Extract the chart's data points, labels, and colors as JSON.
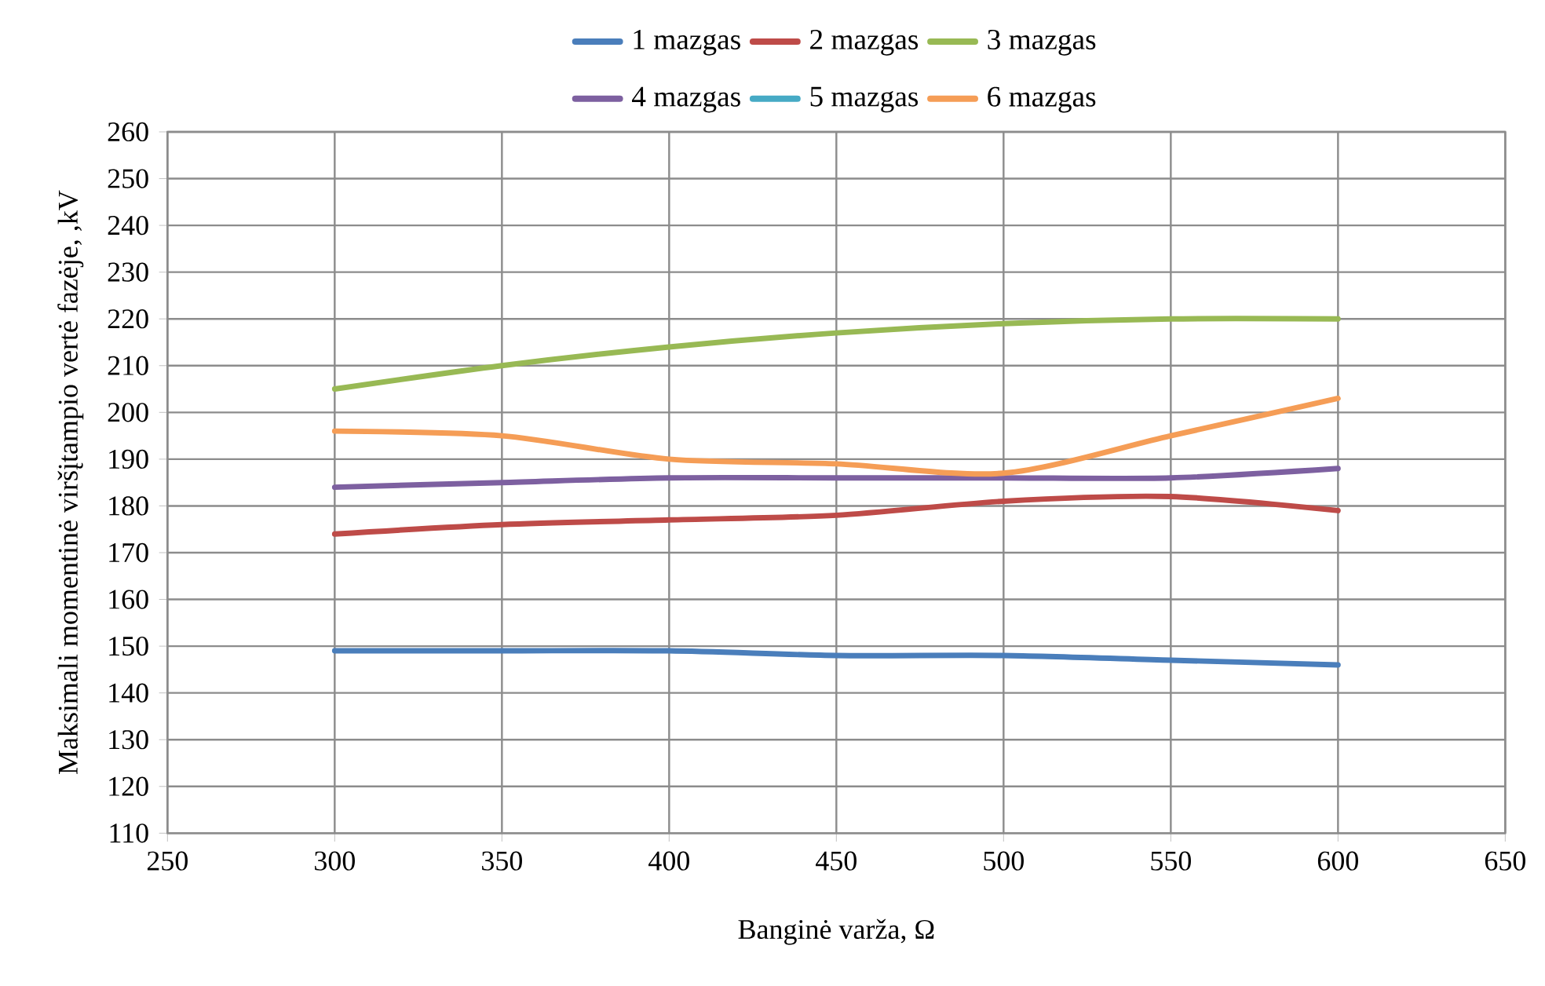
{
  "chart_data": {
    "type": "line",
    "xlabel": "Banginė varža, Ω",
    "ylabel": "Maksimali momentinė viršįtampio vertė fazėje, ,kV",
    "x": [
      300,
      350,
      400,
      450,
      500,
      550,
      600
    ],
    "series": [
      {
        "name": "1 mazgas",
        "color": "#4a7ebb",
        "values": [
          149,
          149,
          149,
          148,
          148,
          147,
          146
        ]
      },
      {
        "name": "2 mazgas",
        "color": "#be4b48",
        "values": [
          174,
          176,
          177,
          178,
          181,
          182,
          179
        ]
      },
      {
        "name": "3 mazgas",
        "color": "#98b954",
        "values": [
          205,
          210,
          214,
          217,
          219,
          220,
          220
        ]
      },
      {
        "name": "4 mazgas",
        "color": "#7d60a0",
        "values": [
          184,
          185,
          186,
          186,
          186,
          186,
          188
        ]
      },
      {
        "name": "5 mazgas",
        "color": "#46aac5",
        "values": [
          null,
          null,
          null,
          null,
          null,
          null,
          null
        ]
      },
      {
        "name": "6 mazgas",
        "color": "#f59d56",
        "values": [
          196,
          195,
          190,
          189,
          187,
          195,
          203
        ]
      }
    ],
    "xlim": [
      250,
      650
    ],
    "xticks": [
      250,
      300,
      350,
      400,
      450,
      500,
      550,
      600,
      650
    ],
    "ylim": [
      110,
      260
    ],
    "yticks": [
      110,
      120,
      130,
      140,
      150,
      160,
      170,
      180,
      190,
      200,
      210,
      220,
      230,
      240,
      250,
      260
    ],
    "grid": true,
    "legend": "top",
    "marker": "none",
    "line_style": "solid"
  }
}
